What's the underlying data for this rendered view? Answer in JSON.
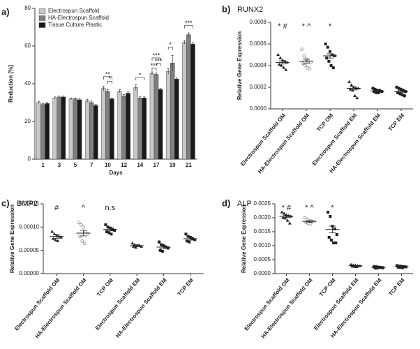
{
  "chart_data": [
    {
      "type": "bar",
      "panel_label": "a)",
      "ylabel": "Reduction [%]",
      "xlabel": "Days",
      "categories": [
        "1",
        "3",
        "5",
        "7",
        "10",
        "12",
        "14",
        "17",
        "19",
        "21"
      ],
      "series": [
        {
          "name": "Electrospun Scaffold",
          "color": "#c8c8c8",
          "values": [
            30,
            32.5,
            32,
            31,
            37.5,
            36,
            38,
            45.5,
            46.5,
            62
          ],
          "errors": [
            0.5,
            0.5,
            0.5,
            0.8,
            1.2,
            0.8,
            1.5,
            0.8,
            1.5,
            1
          ]
        },
        {
          "name": "HA-Electrospun Scaffold",
          "color": "#7f7f7f",
          "values": [
            29,
            33,
            32,
            30,
            36,
            33.5,
            32.5,
            45,
            51,
            66
          ],
          "errors": [
            0.5,
            0.5,
            0.5,
            0.8,
            1,
            0.8,
            0.8,
            0.8,
            4,
            1
          ]
        },
        {
          "name": "Tissue Culture Plastic",
          "color": "#1a1a1a",
          "values": [
            29.5,
            33,
            31.5,
            28.5,
            32,
            35,
            32.5,
            37,
            42.5,
            61
          ],
          "errors": [
            0.5,
            0.5,
            0.5,
            0.5,
            0.5,
            0.8,
            0.5,
            0.5,
            0.5,
            0.8
          ]
        }
      ],
      "ylim": [
        0,
        80
      ],
      "yticks": [
        0,
        20,
        40,
        60,
        80
      ],
      "annotations": [
        "**",
        "*",
        "*",
        "***",
        "***",
        "***",
        "*",
        "***"
      ]
    },
    {
      "type": "strip",
      "panel_label": "b)",
      "title": "RUNX2",
      "ylabel": "Relative Gene Expression",
      "categories": [
        "Electrospun Scaffold OM",
        "HA-Electrospun Scaffold OM",
        "TCP OM",
        "Electrospun Scaffold EM",
        "HA-Electrospun Scaffold EM",
        "TCP EM"
      ],
      "markers": [
        "triangle",
        "circle-open",
        "square",
        "triangle",
        "circle",
        "circle"
      ],
      "points": [
        [
          0.0005,
          0.00047,
          0.00045,
          0.00044,
          0.00043,
          0.00041,
          0.0004,
          0.00038,
          0.00036
        ],
        [
          0.00055,
          0.00049,
          0.00046,
          0.00044,
          0.00043,
          0.00042,
          0.0004,
          0.00038,
          0.00037
        ],
        [
          0.0006,
          0.00057,
          0.00053,
          0.0005,
          0.00049,
          0.00047,
          0.00044,
          0.0004,
          0.00038
        ],
        [
          0.00025,
          0.00022,
          0.0002,
          0.00019,
          0.00019,
          0.00018,
          0.00017,
          0.00012,
          0.0001
        ],
        [
          0.00019,
          0.00018,
          0.00017,
          0.00017,
          0.00016,
          0.00016,
          0.00015,
          0.00015
        ],
        [
          0.0002,
          0.00019,
          0.00018,
          0.00017,
          0.00016,
          0.00015,
          0.00014,
          0.00013,
          0.00012
        ]
      ],
      "means": [
        0.00043,
        0.00044,
        0.00049,
        0.00019,
        0.000165,
        0.00016
      ],
      "sems": [
        1.5e-05,
        2e-05,
        2e-05,
        1.5e-05,
        1e-05,
        1e-05
      ],
      "annotations": [
        "* #",
        "* ^",
        "*"
      ],
      "ylim": [
        0,
        0.0008
      ],
      "yticks": [
        {
          "value": 0,
          "label": "0.0000"
        },
        {
          "value": 0.0002,
          "label": "0.0002"
        },
        {
          "value": 0.0004,
          "label": "0.0004"
        },
        {
          "value": 0.0006,
          "label": "0.0006"
        },
        {
          "value": 0.0008,
          "label": "0.0008"
        }
      ]
    },
    {
      "type": "strip",
      "panel_label": "c)",
      "title": "BMP2",
      "ylabel": "Relative Gene Expression",
      "categories": [
        "Electrospun Scaffold OM",
        "HA-Electrospun Scaffold OM",
        "TCP OM",
        "Electrospun Scaffold EM",
        "HA-Electrospun Scaffold EM",
        "TCP EM"
      ],
      "markers": [
        "triangle",
        "circle-open",
        "square",
        "triangle",
        "circle",
        "square"
      ],
      "points": [
        [
          9e-05,
          8.5e-05,
          8.2e-05,
          8e-05,
          7.8e-05,
          7.5e-05,
          7.2e-05,
          7e-05
        ],
        [
          0.00011,
          0.000105,
          0.0001,
          9e-05,
          8.5e-05,
          8e-05,
          7e-05,
          6.5e-05
        ],
        [
          0.000105,
          0.0001,
          9.8e-05,
          9.5e-05,
          9.3e-05,
          9e-05,
          8.8e-05,
          8.5e-05
        ],
        [
          6.5e-05,
          6.2e-05,
          6e-05,
          6e-05,
          5.8e-05,
          5.8e-05,
          5.6e-05
        ],
        [
          6.8e-05,
          6.2e-05,
          6e-05,
          5.7e-05,
          5.5e-05,
          5e-05,
          4.8e-05
        ],
        [
          8.5e-05,
          8e-05,
          7.8e-05,
          7.5e-05,
          7.3e-05,
          7e-05,
          6.8e-05
        ]
      ],
      "means": [
        8e-05,
        8.7e-05,
        9.5e-05,
        6e-05,
        5.7e-05,
        7.5e-05
      ],
      "sems": [
        4e-06,
        6e-06,
        3e-06,
        2e-06,
        3e-06,
        3e-06
      ],
      "annotations": [
        "#",
        "^",
        "n.s"
      ],
      "ylim": [
        0,
        0.00015
      ],
      "yticks": [
        {
          "value": 0,
          "label": "0.00000"
        },
        {
          "value": 5e-05,
          "label": "0.00005"
        },
        {
          "value": 0.0001,
          "label": "0.00010"
        },
        {
          "value": 0.00015,
          "label": "0.00015"
        }
      ]
    },
    {
      "type": "strip",
      "panel_label": "d)",
      "title": "ALP",
      "ylabel": "Relative Gene Expression",
      "categories": [
        "Electrospun Scaffold OM",
        "HA-Electrospun Scaffold OM",
        "TCP OM",
        "Electrospun Scaffold EM",
        "HA-Electrospun Scaffold EM",
        "TCP EM"
      ],
      "markers": [
        "triangle",
        "circle-open",
        "square",
        "triangle",
        "circle",
        "square"
      ],
      "points": [
        [
          0.0022,
          0.00215,
          0.0021,
          0.00207,
          0.00205,
          0.002,
          0.00198,
          0.0019,
          0.0018
        ],
        [
          0.002,
          0.00195,
          0.0019,
          0.00188,
          0.00186,
          0.00183,
          0.0018,
          0.00178
        ],
        [
          0.0022,
          0.00205,
          0.0017,
          0.0016,
          0.0014,
          0.0013,
          0.0012,
          0.0011,
          0.0011
        ],
        [
          0.00032,
          0.0003,
          0.00029,
          0.00028,
          0.00027,
          0.00026,
          0.00025,
          0.00024
        ],
        [
          0.00025,
          0.00024,
          0.00023,
          0.00022,
          0.00021,
          0.0002,
          0.0002
        ],
        [
          0.00029,
          0.00027,
          0.00026,
          0.00025,
          0.00024,
          0.00023,
          0.00022,
          0.00021
        ]
      ],
      "means": [
        0.00205,
        0.00187,
        0.00158,
        0.00028,
        0.00022,
        0.00025
      ],
      "sems": [
        4e-05,
        3e-05,
        0.00012,
        1e-05,
        1e-05,
        1e-05
      ],
      "annotations": [
        "* #",
        "* ^",
        "*"
      ],
      "ylim": [
        0,
        0.0025
      ],
      "yticks": [
        {
          "value": 0,
          "label": "0.0000"
        },
        {
          "value": 0.0005,
          "label": "0.0005"
        },
        {
          "value": 0.001,
          "label": "0.0010"
        },
        {
          "value": 0.0015,
          "label": "0.0015"
        },
        {
          "value": 0.002,
          "label": "0.0020"
        },
        {
          "value": 0.0025,
          "label": "0.0025"
        }
      ]
    }
  ]
}
